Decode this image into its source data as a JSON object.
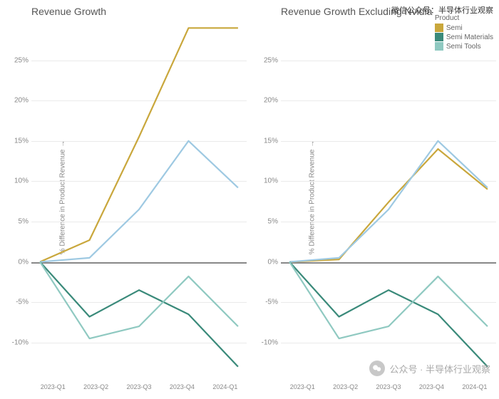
{
  "watermark_top": "微信公众号：半导体行业观察",
  "watermark_bottom": "公众号 · 半导体行业观察",
  "legend": {
    "title": "Product",
    "items": [
      {
        "label": "Semi",
        "color": "#c9a73c"
      },
      {
        "label": "Semi Materials",
        "color": "#3a8a7a"
      },
      {
        "label": "Semi Tools",
        "color": "#8fc9c1"
      }
    ]
  },
  "y_label": "% Difference in Product Revenue",
  "y_ticks": [
    -10,
    -5,
    0,
    5,
    10,
    15,
    20,
    25
  ],
  "ylim": [
    -14,
    30
  ],
  "x_categories": [
    "2023-Q1",
    "2023-Q2",
    "2023-Q3",
    "2023-Q4",
    "2024-Q1"
  ],
  "tarana_color": "#9ec9e2",
  "grid_color": "#eaeaea",
  "zero_color": "#888888",
  "line_width": 2.2,
  "panels": [
    {
      "title": "Revenue Growth",
      "series": {
        "semi": {
          "color": "#c9a73c",
          "values": [
            0,
            2.7,
            15.5,
            29,
            29
          ]
        },
        "semi_tarana": {
          "color": "#9ec9e2",
          "values": [
            0,
            0.5,
            6.5,
            15,
            9.2
          ]
        },
        "semi_materials": {
          "color": "#3a8a7a",
          "values": [
            0,
            -6.8,
            -3.5,
            -6.5,
            -13
          ]
        },
        "semi_tools": {
          "color": "#8fc9c1",
          "values": [
            0,
            -9.5,
            -8,
            -1.8,
            -8
          ]
        }
      }
    },
    {
      "title": "Revenue Growth Excluding Nvidia",
      "series": {
        "semi": {
          "color": "#c9a73c",
          "values": [
            0,
            0.3,
            7.4,
            14,
            9
          ]
        },
        "semi_tarana": {
          "color": "#9ec9e2",
          "values": [
            0,
            0.5,
            6.5,
            15,
            9.2
          ]
        },
        "semi_materials": {
          "color": "#3a8a7a",
          "values": [
            0,
            -6.8,
            -3.5,
            -6.5,
            -13
          ]
        },
        "semi_tools": {
          "color": "#8fc9c1",
          "values": [
            0,
            -9.5,
            -8,
            -1.8,
            -8
          ]
        }
      }
    }
  ]
}
